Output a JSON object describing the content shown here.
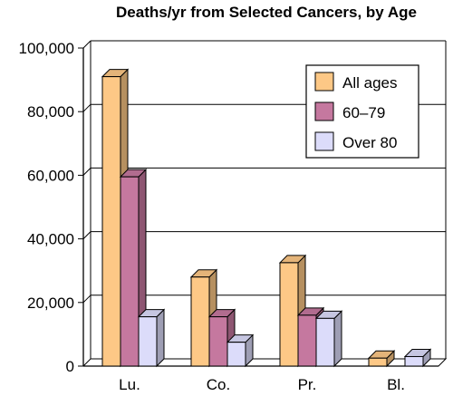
{
  "chart_data": {
    "type": "bar",
    "title": "Deaths/yr from Selected Cancers, by Age",
    "categories": [
      "Lu.",
      "Co.",
      "Pr.",
      "Bl."
    ],
    "series": [
      {
        "name": "All ages",
        "values": [
          91000,
          28000,
          32500,
          2500
        ],
        "color": "#fdc886"
      },
      {
        "name": "60–79",
        "values": [
          59500,
          15500,
          16000,
          0
        ],
        "color": "#c5789f"
      },
      {
        "name": "Over 80",
        "values": [
          15500,
          7500,
          15000,
          3000
        ],
        "color": "#dcdcfa"
      }
    ],
    "ylim": [
      0,
      100000
    ],
    "yticks": [
      "0",
      "20,000",
      "40,000",
      "60,000",
      "80,000",
      "100,000"
    ],
    "grid": true,
    "legend_position": "top-right"
  }
}
